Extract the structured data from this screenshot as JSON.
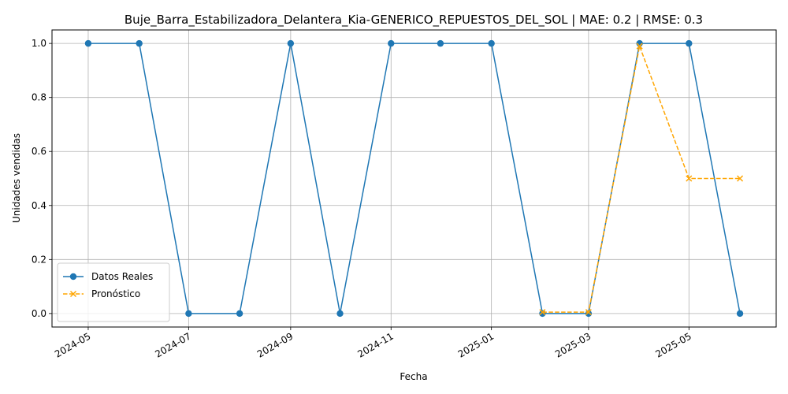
{
  "chart_data": {
    "type": "line",
    "title": "Buje_Barra_Estabilizadora_Delantera_Kia-GENERICO_REPUESTOS_DEL_SOL | MAE: 0.2 | RMSE: 0.3",
    "xlabel": "Fecha",
    "ylabel": "Unidades vendidas",
    "x_ticks": [
      "2024-05",
      "2024-07",
      "2024-09",
      "2024-11",
      "2025-01",
      "2025-03",
      "2025-05"
    ],
    "y_ticks": [
      "0.0",
      "0.2",
      "0.4",
      "0.6",
      "0.8",
      "1.0"
    ],
    "ylim": [
      -0.05,
      1.05
    ],
    "xlim": [
      "2024-04-09",
      "2025-06-23"
    ],
    "grid": true,
    "legend_position": "lower-left",
    "series": [
      {
        "name": "Datos Reales",
        "color": "#1f77b4",
        "style": "solid",
        "marker": "circle",
        "x": [
          "2024-05-01",
          "2024-06-01",
          "2024-07-01",
          "2024-08-01",
          "2024-09-01",
          "2024-10-01",
          "2024-11-01",
          "2024-12-01",
          "2025-01-01",
          "2025-02-01",
          "2025-03-01",
          "2025-04-01",
          "2025-05-01",
          "2025-06-01"
        ],
        "y": [
          1,
          1,
          0,
          0,
          1,
          0,
          1,
          1,
          1,
          0,
          0,
          1,
          1,
          0
        ]
      },
      {
        "name": "Pronóstico",
        "color": "#ffa500",
        "style": "dashed",
        "marker": "x",
        "x": [
          "2025-02-01",
          "2025-03-01",
          "2025-04-01",
          "2025-05-01",
          "2025-06-01"
        ],
        "y": [
          0.005,
          0.005,
          0.99,
          0.5,
          0.5
        ]
      }
    ]
  }
}
